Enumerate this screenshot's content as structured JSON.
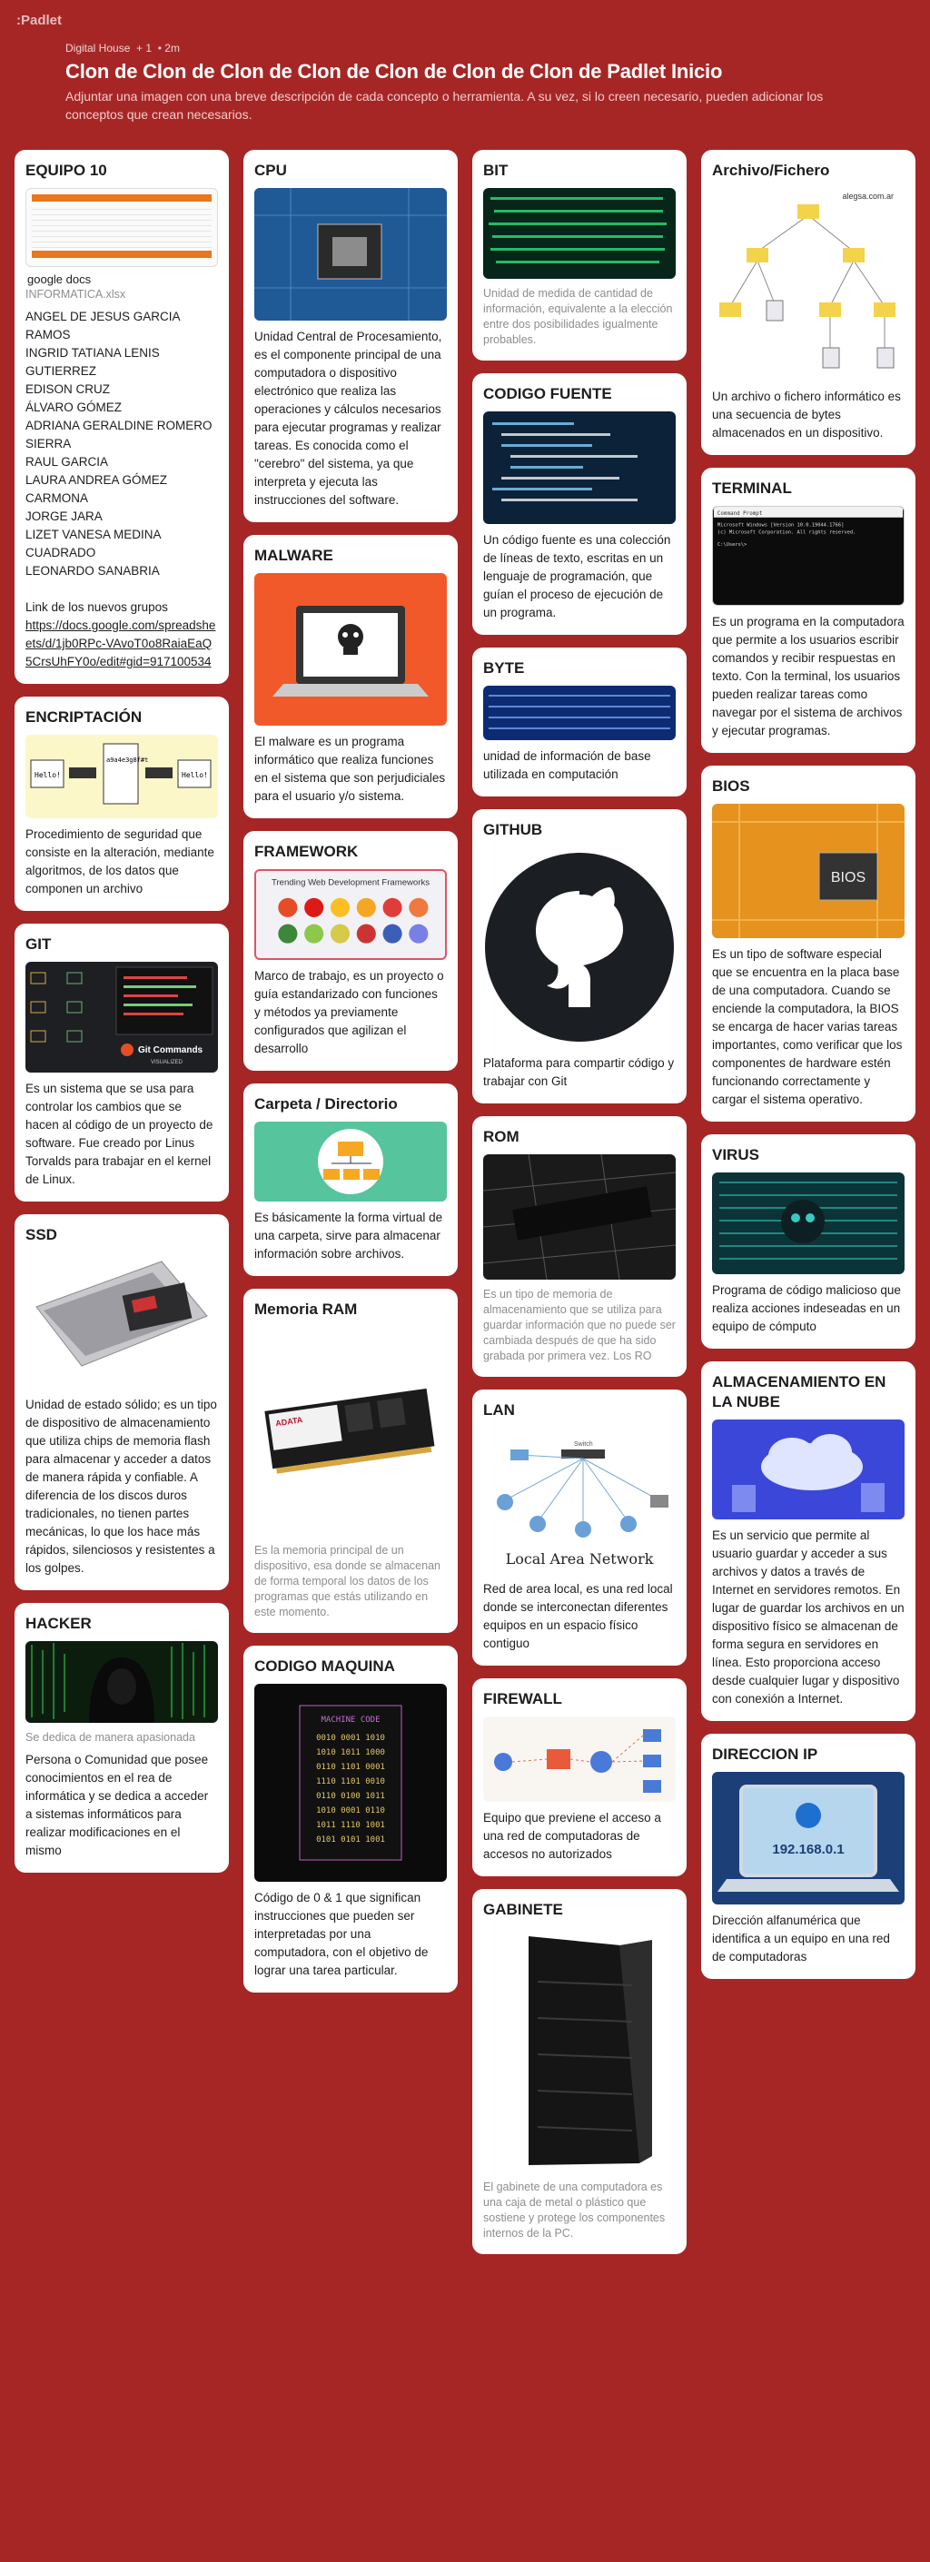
{
  "app": {
    "logo": ":Padlet"
  },
  "header": {
    "author": "Digital House",
    "likes": "+ 1",
    "time": "• 2m",
    "title": "Clon de Clon de Clon de Clon de Clon de Clon de Clon de Padlet Inicio",
    "subtitle": "Adjuntar una imagen con una breve descripción de cada concepto o herramienta. A su vez, si lo creen necesario, pueden adicionar los conceptos que crean necesarios."
  },
  "cards": {
    "equipo": {
      "title": "EQUIPO 10",
      "docs_label": "google docs",
      "file": "INFORMATICA.xlsx",
      "members": [
        "ANGEL DE JESUS GARCIA RAMOS",
        "INGRID TATIANA LENIS GUTIERREZ",
        "EDISON CRUZ",
        "ÁLVARO GÓMEZ",
        "ADRIANA GERALDINE ROMERO SIERRA",
        "RAUL GARCIA",
        "LAURA ANDREA GÓMEZ CARMONA",
        "JORGE JARA",
        "LIZET VANESA MEDINA CUADRADO",
        "LEONARDO SANABRIA"
      ],
      "link_intro": "Link de los nuevos grupos",
      "link": "https://docs.google.com/spreadsheets/d/1jb0RPc-VAvoT0o8RaiaEaQ5CrsUhFY0o/edit#gid=917100534"
    },
    "encriptacion": {
      "title": "ENCRIPTACIÓN",
      "img_a": "Hello!",
      "img_b": "Hello!",
      "img_c": "a9a4e3g8f#t",
      "text": "Procedimiento de seguridad que consiste en la alteración, mediante algoritmos, de los datos que componen un archivo"
    },
    "git": {
      "title": "GIT",
      "img_caption": "Git Commands",
      "img_sub": "VISUALIZED",
      "text": "Es un sistema que se usa para controlar los cambios que se hacen al código de un proyecto de software. Fue creado por Linus Torvalds para trabajar en el kernel de Linux."
    },
    "ssd": {
      "title": "SSD",
      "text": "Unidad de estado sólido; es un tipo de dispositivo de almacenamiento que utiliza chips de memoria flash para almacenar y acceder a datos de manera rápida y confiable. A diferencia de los discos duros tradicionales, no tienen partes mecánicas, lo que los hace más rápidos, silenciosos y resistentes a los golpes."
    },
    "hacker": {
      "title": "HACKER",
      "caption": "Se dedica de manera apasionada",
      "text": "Persona o Comunidad que posee conocimientos en el rea de informática y se dedica a acceder a sistemas informáticos para realizar modificaciones en el mismo"
    },
    "cpu": {
      "title": "CPU",
      "text": "Unidad Central de Procesamiento, es el componente principal de una computadora o dispositivo electrónico que realiza las operaciones y cálculos necesarios para ejecutar programas y realizar tareas. Es conocida como el \"cerebro\" del sistema, ya que interpreta y ejecuta las instrucciones del software."
    },
    "malware": {
      "title": "MALWARE",
      "text": "El malware es un programa informático que realiza funciones en el sistema que son perjudiciales para el usuario y/o sistema."
    },
    "framework": {
      "title": "FRAMEWORK",
      "img_title": "Trending Web Development Frameworks",
      "text": "Marco de trabajo, es un proyecto o guía estandarizado con funciones y métodos ya previamente configurados que agilizan el desarrollo"
    },
    "carpeta": {
      "title": "Carpeta / Directorio",
      "text": "Es básicamente la forma virtual de una carpeta, sirve para almacenar información sobre archivos."
    },
    "ram": {
      "title": "Memoria RAM",
      "img_brand": "ADATA",
      "caption": "Es la memoria principal de un dispositivo, esa donde se almacenan de forma temporal los datos de los programas que estás utilizando en este momento."
    },
    "codigo_maquina": {
      "title": "CODIGO MAQUINA",
      "img_title": "MACHINE CODE",
      "img_rows": [
        "0010 0001 1010",
        "1010 1011 1000",
        "0110 1101 0001",
        "1110 1101 0010",
        "0110 0100 1011",
        "1010 0001 0110",
        "1011 1110 1001",
        "0101 0101 1001"
      ],
      "text": "Código de 0 & 1 que significan instrucciones que pueden ser interpretadas por una computadora, con el objetivo de lograr una tarea particular."
    },
    "bit": {
      "title": "BIT",
      "caption": "Unidad de medida de cantidad de información, equivalente a la elección entre dos posibilidades igualmente probables."
    },
    "codigo_fuente": {
      "title": "CODIGO FUENTE",
      "text": "Un código fuente es una colección de líneas de texto, escritas en un lenguaje de programación, que guían el proceso de ejecución de un programa."
    },
    "byte": {
      "title": "BYTE",
      "text": "unidad de información de base utilizada en computación"
    },
    "github": {
      "title": "GITHUB",
      "text": "Plataforma para compartir código y trabajar con Git"
    },
    "rom": {
      "title": "ROM",
      "caption": "Es un tipo de memoria de almacenamiento que se utiliza para guardar información que no puede ser cambiada después de que ha sido grabada por primera vez. Los RO"
    },
    "lan": {
      "title": "LAN",
      "img_title": "Local Area Network",
      "img_label": "Switch",
      "text": "Red de area local, es una red local donde se interconectan diferentes equipos en un espacio físico contiguo"
    },
    "firewall": {
      "title": "FIREWALL",
      "text": "Equipo que previene el acceso a una red de computadoras de accesos no autorizados"
    },
    "gabinete": {
      "title": "GABINETE",
      "caption": "El gabinete de una computadora es una caja de metal o plástico que sostiene y protege los componentes internos de la PC."
    },
    "archivo": {
      "title": "Archivo/Fichero",
      "img_site": "alegsa.com.ar",
      "text": "Un archivo o fichero informático es una secuencia de bytes almacenados en un dispositivo."
    },
    "terminal": {
      "title": "TERMINAL",
      "img_title": "Command Prompt",
      "img_line1": "Microsoft Windows [Version 10.0.19044.1766]",
      "img_line2": "(c) Microsoft Corporation. All rights reserved.",
      "img_line3": "C:\\Users\\>",
      "text": "Es un programa en la computadora que permite a los usuarios escribir comandos y recibir respuestas en texto. Con la terminal, los usuarios pueden realizar tareas como navegar por el sistema de archivos y ejecutar programas."
    },
    "bios": {
      "title": "BIOS",
      "img_label": "BIOS",
      "text": "Es un tipo de software especial que se encuentra en la placa base de una computadora. Cuando se enciende la computadora, la BIOS se encarga de hacer varias tareas importantes, como verificar que los componentes de hardware estén funcionando correctamente y cargar el sistema operativo."
    },
    "virus": {
      "title": "VIRUS",
      "text": "Programa de código malicioso que realiza acciones indeseadas en un equipo de cómputo"
    },
    "nube": {
      "title": "ALMACENAMIENTO EN LA NUBE",
      "text": "Es un servicio que permite al usuario guardar y acceder a sus archivos y datos a través de Internet en servidores remotos. En lugar de guardar los archivos en un dispositivo físico se almacenan de forma segura en servidores en línea. Esto proporciona acceso desde cualquier lugar y dispositivo con conexión a Internet."
    },
    "ip": {
      "title": "DIRECCION IP",
      "img_label": "192.168.0.1",
      "text": "Dirección alfanumérica que identifica a un equipo en una red de computadoras"
    }
  }
}
